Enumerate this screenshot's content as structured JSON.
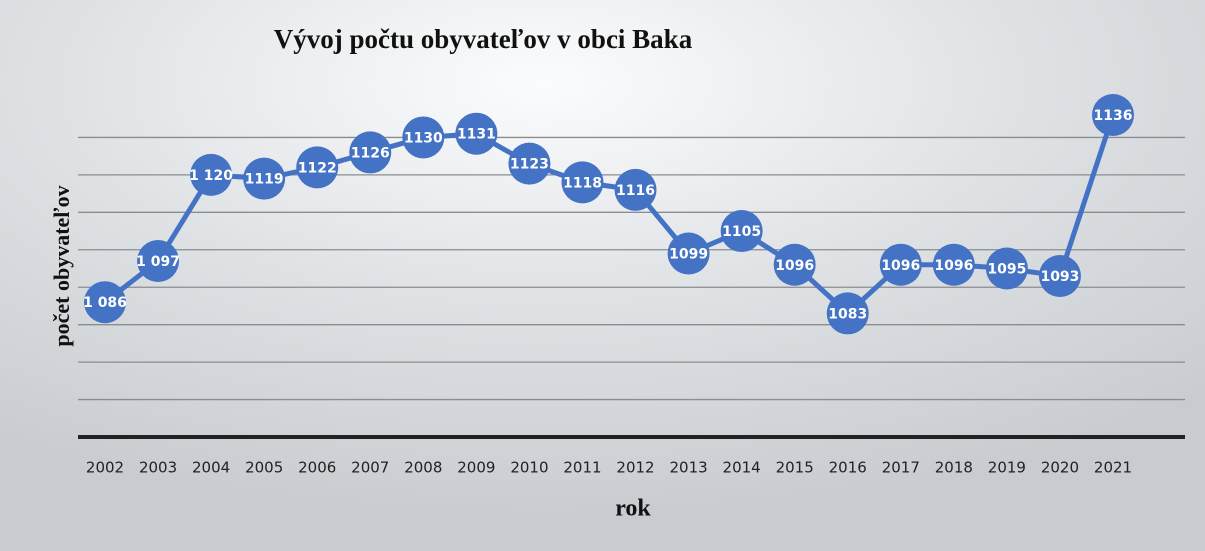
{
  "chart_data": {
    "type": "line",
    "title": "Vývoj počtu obyvateľov v obci Baka",
    "xlabel": "rok",
    "ylabel": "počet obyvateľov",
    "categories": [
      "2002",
      "2003",
      "2004",
      "2005",
      "2006",
      "2007",
      "2008",
      "2009",
      "2010",
      "2011",
      "2012",
      "2013",
      "2014",
      "2015",
      "2016",
      "2017",
      "2018",
      "2019",
      "2020",
      "2021"
    ],
    "series": [
      {
        "name": "počet obyvateľov",
        "color": "#4472c4",
        "values": [
          1086,
          1097,
          1120,
          1119,
          1122,
          1126,
          1130,
          1131,
          1123,
          1118,
          1116,
          1099,
          1105,
          1096,
          1083,
          1096,
          1096,
          1095,
          1093,
          1136
        ],
        "value_labels": [
          "1 086",
          "1 097",
          "1 120",
          "1119",
          "1122",
          "1126",
          "1130",
          "1131",
          "1123",
          "1118",
          "1116",
          "1099",
          "1105",
          "1096",
          "1083",
          "1096",
          "1096",
          "1095",
          "1093",
          "1136"
        ]
      }
    ],
    "ylim": [
      1050,
      1140
    ],
    "yticks": [
      1050,
      1060,
      1070,
      1080,
      1090,
      1100,
      1110,
      1120,
      1130
    ],
    "grid": true
  }
}
